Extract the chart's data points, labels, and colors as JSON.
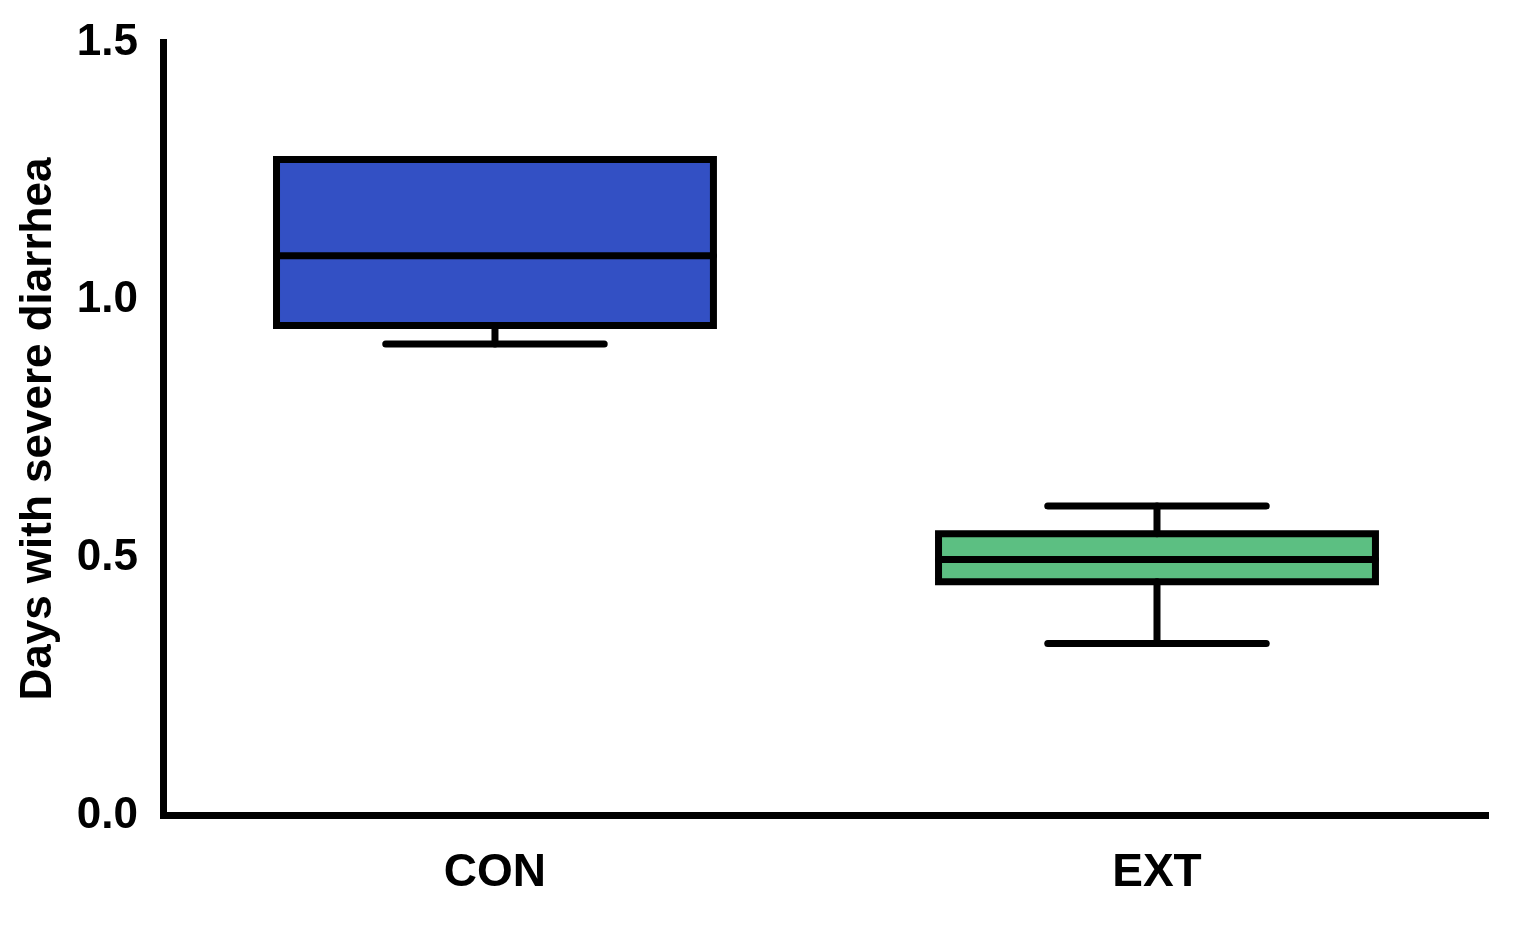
{
  "chart_data": {
    "type": "box",
    "ylabel": "Days with severe diarrhea",
    "categories": [
      "CON",
      "EXT"
    ],
    "boxes": [
      {
        "low": 0.915,
        "q1": 0.951,
        "median": 1.086,
        "q3": 1.273,
        "high": 1.273
      },
      {
        "low": 0.334,
        "q1": 0.454,
        "median": 0.497,
        "q3": 0.547,
        "high": 0.601
      }
    ],
    "colors": [
      "#3350c4",
      "#5cbf82"
    ],
    "ylim": [
      0,
      1.5
    ],
    "yticks": [
      {
        "value": 0,
        "label": "0.0"
      },
      0.5,
      {
        "value": 1,
        "label": "1.0"
      },
      1.5
    ],
    "grid": false,
    "legend": false
  }
}
